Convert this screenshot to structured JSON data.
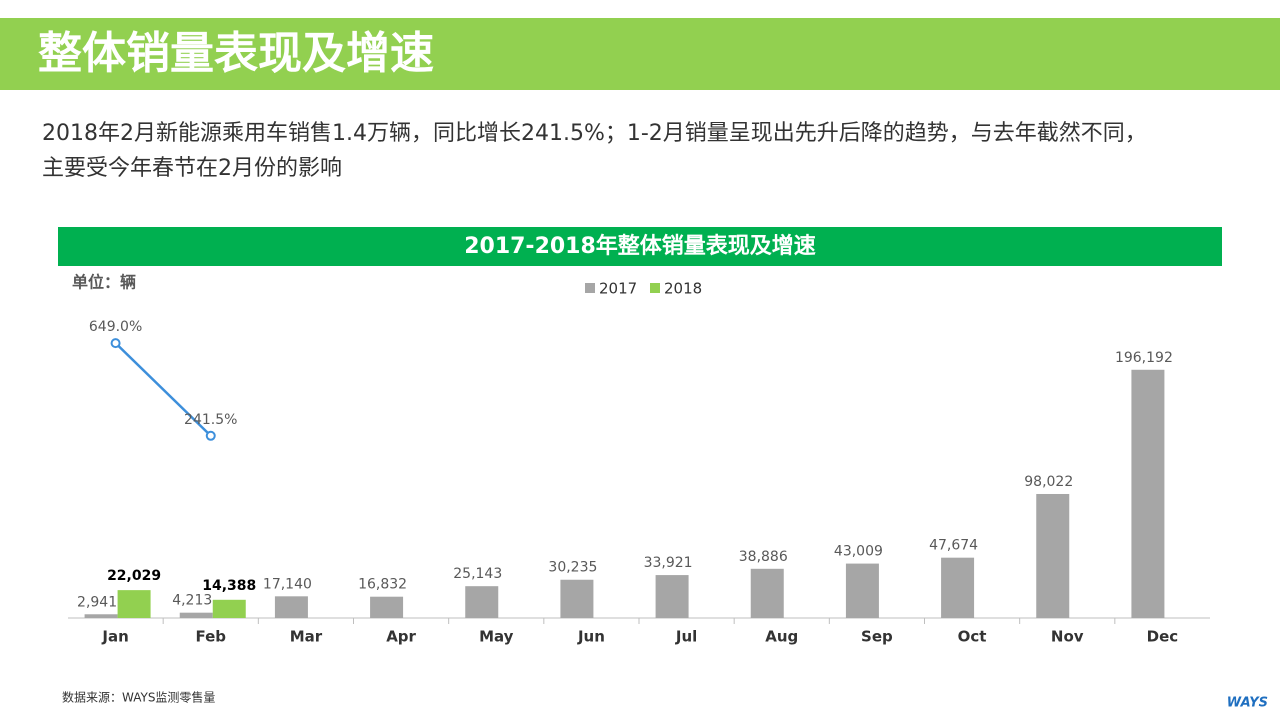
{
  "header": {
    "title": "整体销量表现及增速"
  },
  "summary": [
    "2018年2月新能源乘用车销售1.4万辆，同比增长241.5%；1-2月销量呈现出先升后降的趋势，与去年截然不同，",
    "主要受今年春节在2月份的影响"
  ],
  "chart_data": {
    "type": "bar",
    "title": "2017-2018年整体销量表现及增速",
    "unit_label": "单位：辆",
    "categories": [
      "Jan",
      "Feb",
      "Mar",
      "Apr",
      "May",
      "Jun",
      "Jul",
      "Aug",
      "Sep",
      "Oct",
      "Nov",
      "Dec"
    ],
    "series": [
      {
        "name": "2017",
        "color": "#a6a6a6",
        "values": [
          2941,
          4213,
          17140,
          16832,
          25143,
          30235,
          33921,
          38886,
          43009,
          47674,
          98022,
          196192
        ],
        "value_labels": [
          "2,941",
          "4,213",
          "17,140",
          "16,832",
          "25,143",
          "30,235",
          "33,921",
          "38,886",
          "43,009",
          "47,674",
          "98,022",
          "196,192"
        ]
      },
      {
        "name": "2018",
        "color": "#92d050",
        "values": [
          22029,
          14388,
          null,
          null,
          null,
          null,
          null,
          null,
          null,
          null,
          null,
          null
        ],
        "value_labels": [
          "22,029",
          "14,388",
          null,
          null,
          null,
          null,
          null,
          null,
          null,
          null,
          null,
          null
        ]
      },
      {
        "type": "line",
        "axis": "y2",
        "color": "#3d8fdb",
        "values": [
          649.0,
          241.5,
          null,
          null,
          null,
          null,
          null,
          null,
          null,
          null,
          null,
          null
        ],
        "value_labels": [
          "649.0%",
          "241.5%",
          null,
          null,
          null,
          null,
          null,
          null,
          null,
          null,
          null,
          null
        ]
      }
    ],
    "ylim": [
      0,
      230000
    ],
    "y2lim": [
      -560,
      720
    ],
    "legend": "top"
  },
  "footer": {
    "source": "数据来源：WAYS监测零售量",
    "logo": "WAYS"
  }
}
